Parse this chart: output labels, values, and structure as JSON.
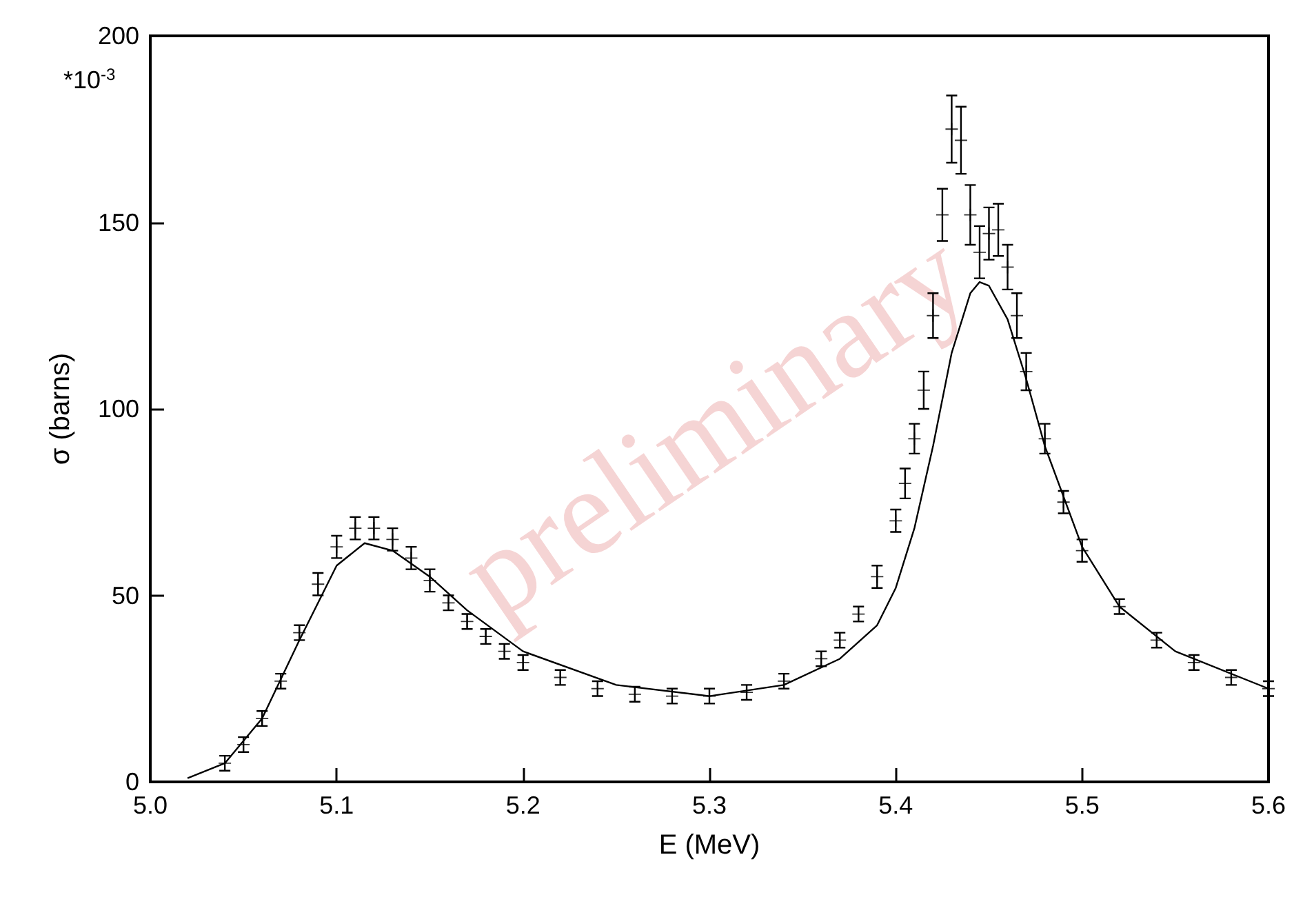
{
  "chart_data": {
    "type": "scatter",
    "xlabel": "E (MeV)",
    "ylabel": "σ (barns)",
    "xlim": [
      5.0,
      5.6
    ],
    "xticks": [
      {
        "value": 5.0,
        "label": "5.0"
      },
      5.1,
      5.2,
      5.3,
      5.4,
      5.5,
      5.6
    ],
    "ylim": [
      0,
      200
    ],
    "yticks": [
      0,
      50,
      100,
      150,
      200
    ],
    "grid": false,
    "annotations": [
      "*10$^{-3}$",
      "preliminary"
    ],
    "series": [
      {
        "marker": "cross",
        "color": "#000000",
        "x": [
          5.04,
          5.05,
          5.06,
          5.07,
          5.08,
          5.09,
          5.1,
          5.11,
          5.12,
          5.13,
          5.14,
          5.15,
          5.16,
          5.17,
          5.18,
          5.19,
          5.2,
          5.22,
          5.24,
          5.26,
          5.28,
          5.3,
          5.32,
          5.34,
          5.36,
          5.37,
          5.38,
          5.39,
          5.4,
          5.405,
          5.41,
          5.415,
          5.42,
          5.425,
          5.43,
          5.435,
          5.44,
          5.445,
          5.45,
          5.455,
          5.46,
          5.465,
          5.47,
          5.48,
          5.49,
          5.5,
          5.52,
          5.54,
          5.56,
          5.58,
          5.6
        ],
        "values": [
          5,
          10,
          17,
          27,
          40,
          53,
          63,
          68,
          68,
          65,
          60,
          54,
          48,
          43,
          39,
          35,
          32,
          28,
          25,
          23.5,
          23,
          23,
          24,
          27,
          33,
          38,
          45,
          55,
          70,
          80,
          92,
          105,
          125,
          152,
          175,
          172,
          152,
          142,
          147,
          148,
          138,
          125,
          110,
          92,
          75,
          62,
          47,
          38,
          32,
          28,
          25
        ],
        "errors": [
          2,
          2,
          2,
          2,
          2,
          3,
          3,
          3,
          3,
          3,
          3,
          3,
          2,
          2,
          2,
          2,
          2,
          2,
          2,
          2,
          2,
          2,
          2,
          2,
          2,
          2,
          2,
          3,
          3,
          4,
          4,
          5,
          6,
          7,
          9,
          9,
          8,
          7,
          7,
          7,
          6,
          6,
          5,
          4,
          3,
          3,
          2,
          2,
          2,
          2,
          2
        ]
      },
      {
        "type": "line",
        "line_style": "solid",
        "color": "#000000",
        "x": [
          5.02,
          5.04,
          5.06,
          5.08,
          5.1,
          5.115,
          5.13,
          5.15,
          5.17,
          5.2,
          5.25,
          5.3,
          5.34,
          5.37,
          5.39,
          5.4,
          5.41,
          5.42,
          5.43,
          5.44,
          5.445,
          5.45,
          5.46,
          5.47,
          5.48,
          5.5,
          5.52,
          5.55,
          5.6
        ],
        "values": [
          1,
          5,
          17,
          38,
          58,
          64,
          62,
          55,
          46,
          35,
          26,
          23,
          26,
          33,
          42,
          52,
          68,
          90,
          115,
          131,
          134,
          133,
          124,
          108,
          90,
          63,
          47,
          35,
          25
        ]
      }
    ]
  }
}
